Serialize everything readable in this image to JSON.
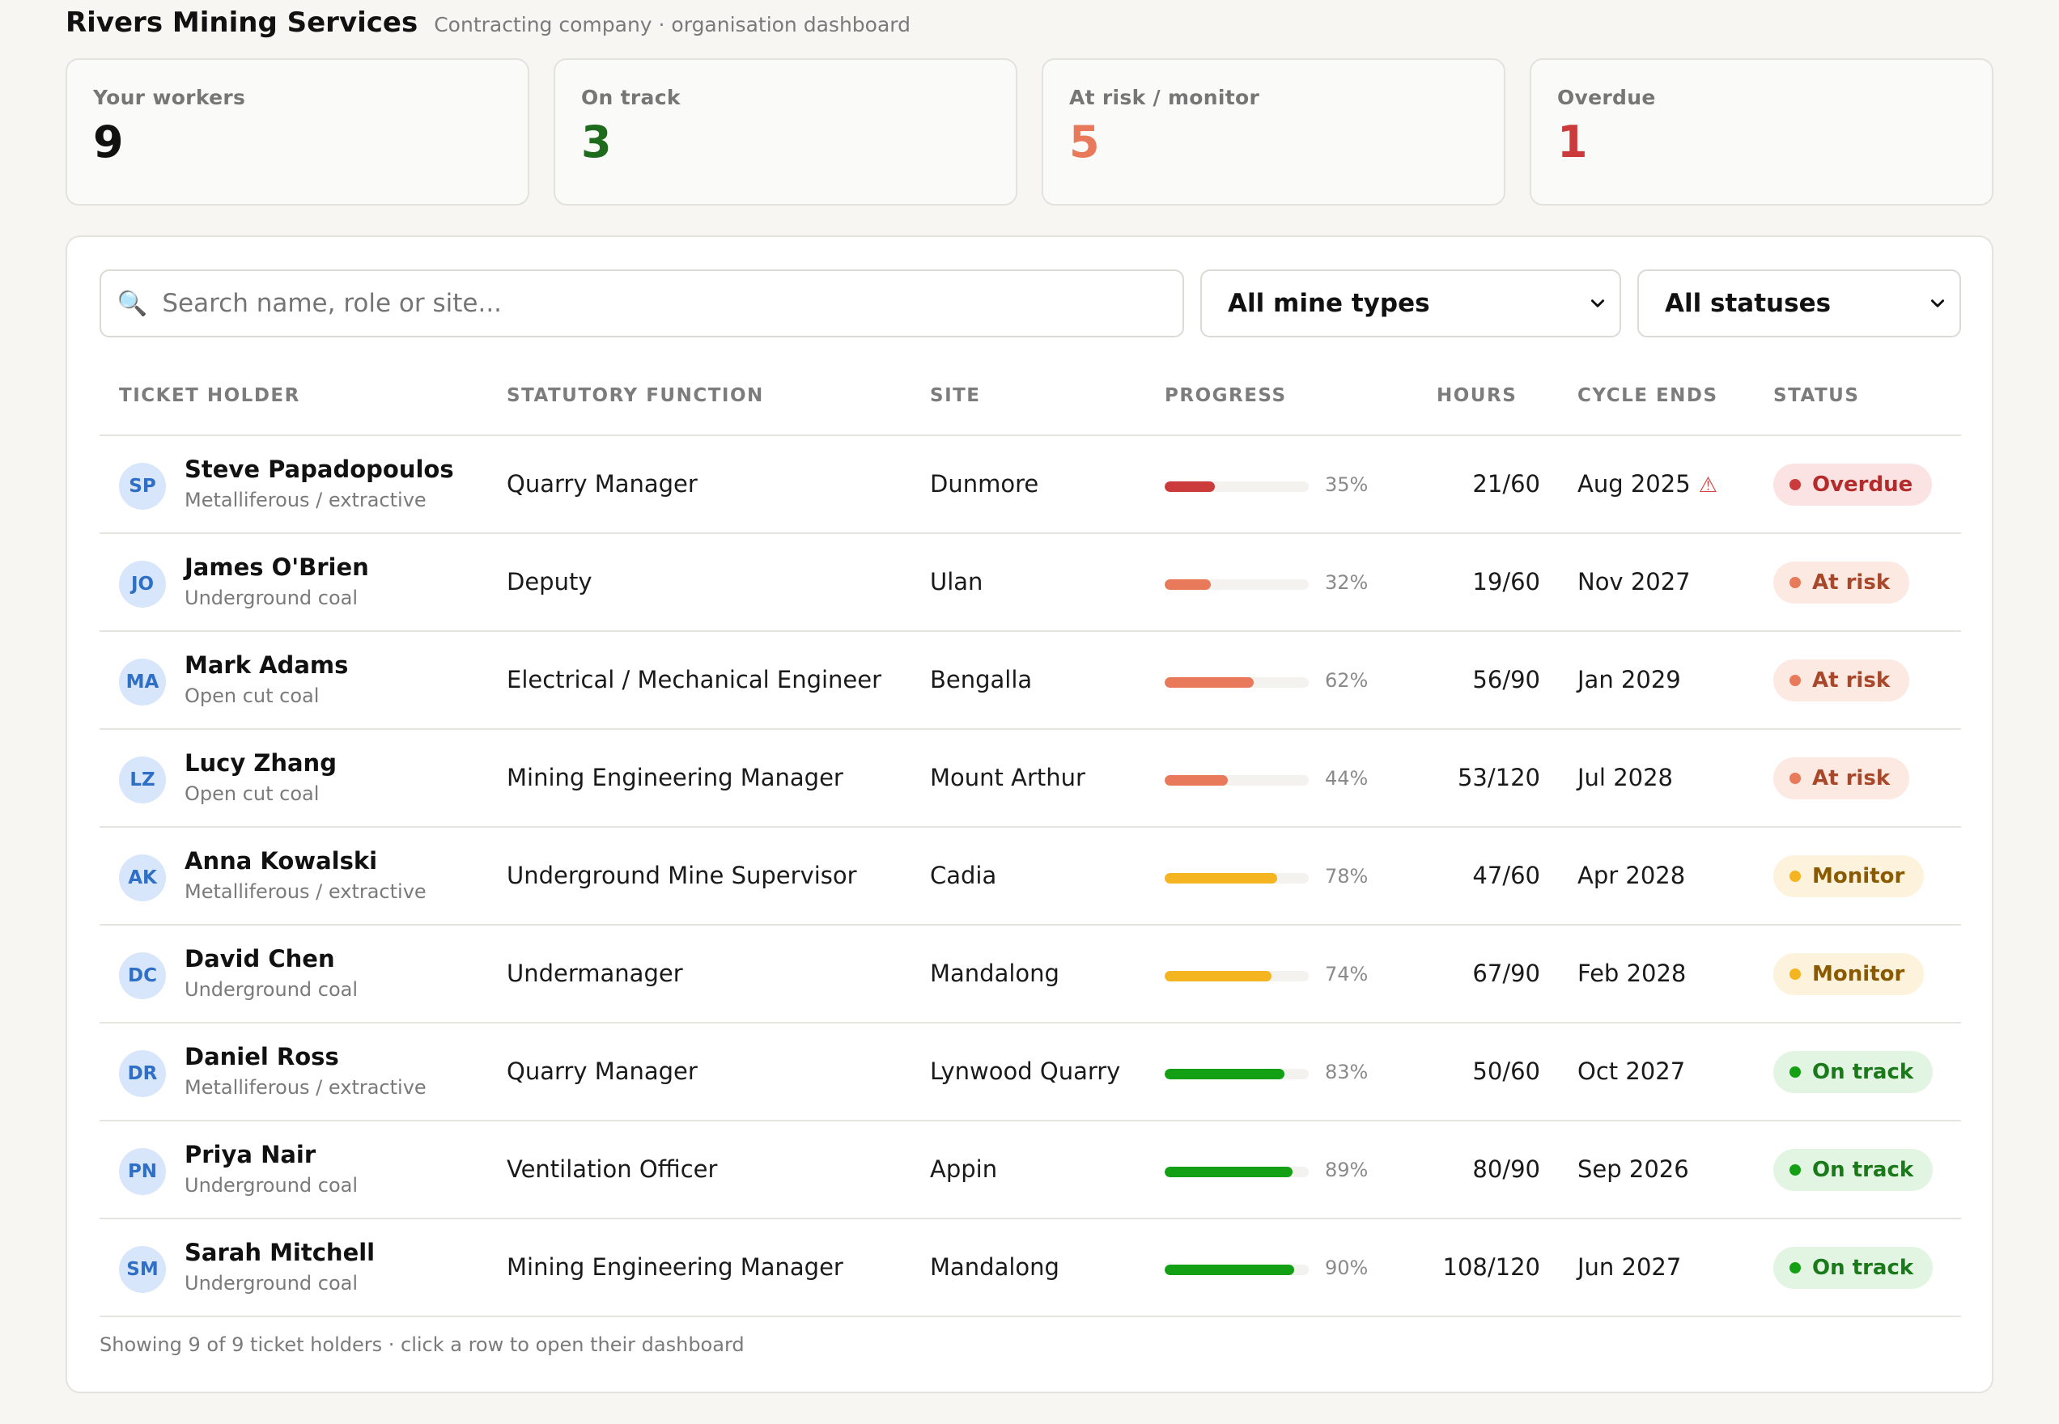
{
  "header": {
    "org_name": "Rivers Mining Services",
    "subtitle": "Contracting company · organisation dashboard"
  },
  "stats": [
    {
      "label": "Your workers",
      "value": "9",
      "color": "#111111"
    },
    {
      "label": "On track",
      "value": "3",
      "color": "#1e6b1e"
    },
    {
      "label": "At risk / monitor",
      "value": "5",
      "color": "#e8795a"
    },
    {
      "label": "Overdue",
      "value": "1",
      "color": "#cc3b3b"
    }
  ],
  "toolbar": {
    "search_placeholder": "Search name, role or site...",
    "search_icon": "magnifier-icon",
    "mine_type_filter": "All mine types",
    "status_filter": "All statuses"
  },
  "table": {
    "headers": {
      "holder": "TICKET HOLDER",
      "function": "STATUTORY FUNCTION",
      "site": "SITE",
      "progress": "PROGRESS",
      "hours": "HOURS",
      "cycle": "CYCLE ENDS",
      "status": "STATUS"
    },
    "rows": [
      {
        "initials": "SP",
        "name": "Steve Papadopoulos",
        "mine_type": "Metalliferous / extractive",
        "function": "Quarry Manager",
        "site": "Dunmore",
        "progress": 35,
        "progress_label": "35%",
        "hours": "21/60",
        "cycle_ends": "Aug 2025",
        "warning": "⚠",
        "status": "Overdue",
        "bar_color": "#cc3b3b",
        "badge_bg": "#fbe3e3",
        "badge_fg": "#b32b2b",
        "dot_color": "#cc3b3b"
      },
      {
        "initials": "JO",
        "name": "James O'Brien",
        "mine_type": "Underground coal",
        "function": "Deputy",
        "site": "Ulan",
        "progress": 32,
        "progress_label": "32%",
        "hours": "19/60",
        "cycle_ends": "Nov 2027",
        "warning": "",
        "status": "At risk",
        "bar_color": "#e8795a",
        "badge_bg": "#fce9e2",
        "badge_fg": "#a8482b",
        "dot_color": "#e8795a"
      },
      {
        "initials": "MA",
        "name": "Mark Adams",
        "mine_type": "Open cut coal",
        "function": "Electrical / Mechanical Engineer",
        "site": "Bengalla",
        "progress": 62,
        "progress_label": "62%",
        "hours": "56/90",
        "cycle_ends": "Jan 2029",
        "warning": "",
        "status": "At risk",
        "bar_color": "#e8795a",
        "badge_bg": "#fce9e2",
        "badge_fg": "#a8482b",
        "dot_color": "#e8795a"
      },
      {
        "initials": "LZ",
        "name": "Lucy Zhang",
        "mine_type": "Open cut coal",
        "function": "Mining Engineering Manager",
        "site": "Mount Arthur",
        "progress": 44,
        "progress_label": "44%",
        "hours": "53/120",
        "cycle_ends": "Jul 2028",
        "warning": "",
        "status": "At risk",
        "bar_color": "#e8795a",
        "badge_bg": "#fce9e2",
        "badge_fg": "#a8482b",
        "dot_color": "#e8795a"
      },
      {
        "initials": "AK",
        "name": "Anna Kowalski",
        "mine_type": "Metalliferous / extractive",
        "function": "Underground Mine Supervisor",
        "site": "Cadia",
        "progress": 78,
        "progress_label": "78%",
        "hours": "47/60",
        "cycle_ends": "Apr 2028",
        "warning": "",
        "status": "Monitor",
        "bar_color": "#f5b520",
        "badge_bg": "#fdf2dc",
        "badge_fg": "#8a5a00",
        "dot_color": "#f5b520"
      },
      {
        "initials": "DC",
        "name": "David Chen",
        "mine_type": "Underground coal",
        "function": "Undermanager",
        "site": "Mandalong",
        "progress": 74,
        "progress_label": "74%",
        "hours": "67/90",
        "cycle_ends": "Feb 2028",
        "warning": "",
        "status": "Monitor",
        "bar_color": "#f5b520",
        "badge_bg": "#fdf2dc",
        "badge_fg": "#8a5a00",
        "dot_color": "#f5b520"
      },
      {
        "initials": "DR",
        "name": "Daniel Ross",
        "mine_type": "Metalliferous / extractive",
        "function": "Quarry Manager",
        "site": "Lynwood Quarry",
        "progress": 83,
        "progress_label": "83%",
        "hours": "50/60",
        "cycle_ends": "Oct 2027",
        "warning": "",
        "status": "On track",
        "bar_color": "#14a014",
        "badge_bg": "#e2f4e2",
        "badge_fg": "#1a7a1a",
        "dot_color": "#14a014"
      },
      {
        "initials": "PN",
        "name": "Priya Nair",
        "mine_type": "Underground coal",
        "function": "Ventilation Officer",
        "site": "Appin",
        "progress": 89,
        "progress_label": "89%",
        "hours": "80/90",
        "cycle_ends": "Sep 2026",
        "warning": "",
        "status": "On track",
        "bar_color": "#14a014",
        "badge_bg": "#e2f4e2",
        "badge_fg": "#1a7a1a",
        "dot_color": "#14a014"
      },
      {
        "initials": "SM",
        "name": "Sarah Mitchell",
        "mine_type": "Underground coal",
        "function": "Mining Engineering Manager",
        "site": "Mandalong",
        "progress": 90,
        "progress_label": "90%",
        "hours": "108/120",
        "cycle_ends": "Jun 2027",
        "warning": "",
        "status": "On track",
        "bar_color": "#14a014",
        "badge_bg": "#e2f4e2",
        "badge_fg": "#1a7a1a",
        "dot_color": "#14a014"
      }
    ]
  },
  "footer": {
    "text": "Showing 9 of 9 ticket holders · click a row to open their dashboard"
  }
}
